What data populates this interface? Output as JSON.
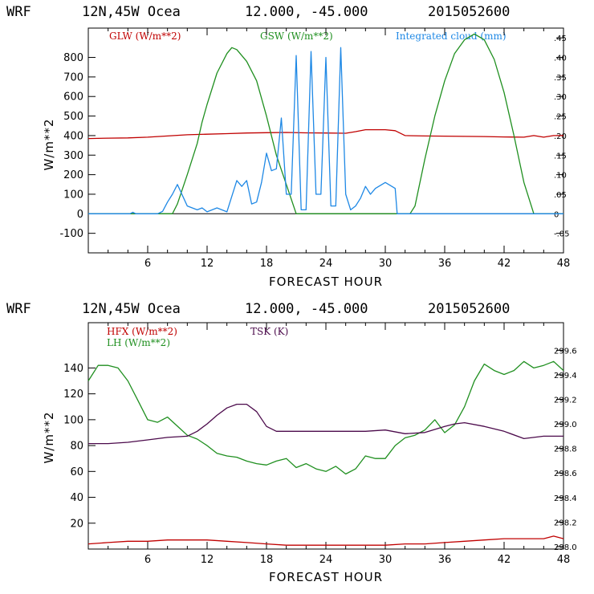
{
  "charts": [
    {
      "header": {
        "model": "WRF",
        "location": "12N,45W Ocea",
        "coords": "12.000, -45.000",
        "date": "2015052600"
      },
      "xlabel": "FORECAST HOUR",
      "ylabel": "W/m**2"
    },
    {
      "header": {
        "model": "WRF",
        "location": "12N,45W Ocea",
        "coords": "12.000, -45.000",
        "date": "2015052600"
      },
      "xlabel": "FORECAST HOUR",
      "ylabel": "W/m**2"
    }
  ],
  "chart_data": [
    {
      "type": "line",
      "title": "WRF 12N,45W Ocea 12.000, -45.000 2015052600",
      "xlabel": "FORECAST HOUR",
      "ylabel": "W/m**2",
      "xlim": [
        0,
        48
      ],
      "ylim": [
        -200,
        950
      ],
      "y2lim": [
        -0.1,
        0.475
      ],
      "x_ticks": [
        6,
        12,
        18,
        24,
        30,
        36,
        42,
        48
      ],
      "y_ticks": [
        -100,
        0,
        100,
        200,
        300,
        400,
        500,
        600,
        700,
        800
      ],
      "y2_ticks": [
        -0.05,
        0,
        0.05,
        0.1,
        0.15,
        0.2,
        0.25,
        0.3,
        0.35,
        0.4,
        0.45
      ],
      "y2_tick_labels": [
        "-.05",
        "0",
        ".05",
        ".10",
        ".15",
        ".20",
        ".25",
        ".30",
        ".35",
        ".40",
        ".45"
      ],
      "zero_line": true,
      "series": [
        {
          "name": "GLW (W/m**2)",
          "color": "#c00000",
          "axis": "left",
          "x": [
            0,
            2,
            4,
            6,
            8,
            10,
            12,
            14,
            16,
            18,
            20,
            22,
            24,
            26,
            27,
            28,
            30,
            31,
            32,
            34,
            36,
            38,
            40,
            42,
            44,
            45,
            46,
            47,
            48
          ],
          "y": [
            385,
            387,
            388,
            392,
            398,
            404,
            407,
            410,
            413,
            415,
            416,
            414,
            413,
            412,
            420,
            430,
            430,
            425,
            400,
            398,
            397,
            396,
            395,
            393,
            392,
            400,
            392,
            400,
            400
          ]
        },
        {
          "name": "GSW (W/m**2)",
          "color": "#1f8f1f",
          "axis": "left",
          "x": [
            0,
            8.5,
            9,
            10,
            11,
            11.5,
            12,
            13,
            14,
            14.5,
            15,
            16,
            17,
            18,
            19,
            20,
            21,
            22,
            32.5,
            33,
            34,
            35,
            36,
            37,
            38,
            39,
            40,
            41,
            42,
            43,
            44,
            45,
            48
          ],
          "y": [
            0,
            0,
            50,
            200,
            360,
            470,
            560,
            720,
            820,
            850,
            840,
            780,
            680,
            500,
            300,
            150,
            0,
            0,
            0,
            40,
            280,
            500,
            680,
            820,
            890,
            920,
            890,
            790,
            620,
            400,
            160,
            0,
            0
          ]
        },
        {
          "name": "Integrated cloud (mm)",
          "color": "#1e88e5",
          "axis": "right",
          "x": [
            0,
            4.2,
            4.5,
            4.8,
            7,
            7.5,
            8,
            8.5,
            9,
            10,
            11,
            11.5,
            12,
            13,
            14,
            15,
            15.5,
            16,
            16.5,
            17,
            17.5,
            18,
            18.5,
            19,
            19.5,
            20,
            20.5,
            21,
            21.5,
            22,
            22.5,
            23,
            23.5,
            24,
            24.5,
            25,
            25.5,
            26,
            26.5,
            27,
            27.5,
            28,
            28.5,
            29,
            30,
            31,
            31.2,
            48
          ],
          "y": [
            0,
            0,
            0.004,
            0,
            0,
            0.006,
            0.03,
            0.05,
            0.075,
            0.02,
            0.01,
            0.015,
            0.005,
            0.015,
            0.005,
            0.085,
            0.07,
            0.085,
            0.025,
            0.03,
            0.08,
            0.155,
            0.11,
            0.115,
            0.245,
            0.05,
            0.05,
            0.405,
            0.01,
            0.01,
            0.415,
            0.05,
            0.05,
            0.4,
            0.02,
            0.02,
            0.425,
            0.05,
            0.01,
            0.02,
            0.04,
            0.07,
            0.05,
            0.065,
            0.08,
            0.065,
            0,
            0
          ]
        }
      ]
    },
    {
      "type": "line",
      "title": "WRF 12N,45W Ocea 12.000, -45.000 2015052600",
      "xlabel": "FORECAST HOUR",
      "ylabel": "W/m**2",
      "xlim": [
        0,
        48
      ],
      "ylim": [
        0,
        175
      ],
      "y2lim": [
        297.98,
        299.825
      ],
      "x_ticks": [
        6,
        12,
        18,
        24,
        30,
        36,
        42,
        48
      ],
      "y_ticks": [
        20,
        40,
        60,
        80,
        100,
        120,
        140
      ],
      "y2_ticks": [
        298.0,
        298.2,
        298.4,
        298.6,
        298.8,
        299.0,
        299.2,
        299.4,
        299.6
      ],
      "y2_tick_labels": [
        "298.0",
        "298.2",
        "298.4",
        "298.6",
        "298.8",
        "299.0",
        "299.2",
        "299.4",
        "299.6"
      ],
      "series": [
        {
          "name": "HFX (W/m**2)",
          "color": "#c00000",
          "axis": "left",
          "x": [
            0,
            2,
            4,
            6,
            8,
            10,
            12,
            14,
            16,
            18,
            20,
            22,
            24,
            26,
            28,
            30,
            32,
            34,
            36,
            38,
            40,
            42,
            44,
            46,
            47,
            48
          ],
          "y": [
            4,
            5,
            6,
            6,
            7,
            7,
            7,
            6,
            5,
            4,
            3,
            3,
            3,
            3,
            3,
            3,
            4,
            4,
            5,
            6,
            7,
            8,
            8,
            8,
            10,
            8
          ]
        },
        {
          "name": "LH (W/m**2)",
          "color": "#1f8f1f",
          "axis": "left",
          "x": [
            0,
            1,
            2,
            3,
            4,
            5,
            6,
            7,
            8,
            9,
            10,
            11,
            12,
            13,
            14,
            15,
            16,
            17,
            18,
            19,
            20,
            21,
            22,
            23,
            24,
            25,
            26,
            27,
            28,
            29,
            30,
            31,
            32,
            33,
            34,
            35,
            36,
            37,
            38,
            39,
            40,
            41,
            42,
            43,
            44,
            45,
            46,
            47,
            48
          ],
          "y": [
            130,
            142,
            142,
            140,
            130,
            115,
            100,
            98,
            102,
            95,
            88,
            85,
            80,
            74,
            72,
            71,
            68,
            66,
            65,
            68,
            70,
            63,
            66,
            62,
            60,
            64,
            58,
            62,
            72,
            70,
            70,
            80,
            86,
            88,
            92,
            100,
            90,
            96,
            110,
            130,
            143,
            138,
            135,
            138,
            145,
            140,
            142,
            145,
            138
          ]
        },
        {
          "name": "TSK (K)",
          "color": "#4b0a4b",
          "axis": "right",
          "x": [
            0,
            2,
            4,
            6,
            8,
            10,
            11,
            12,
            13,
            14,
            15,
            16,
            17,
            18,
            19,
            20,
            22,
            24,
            26,
            28,
            30,
            32,
            34,
            36,
            37,
            38,
            40,
            42,
            44,
            46,
            48
          ],
          "y": [
            298.84,
            298.84,
            298.85,
            298.87,
            298.89,
            298.9,
            298.94,
            299.0,
            299.07,
            299.13,
            299.16,
            299.16,
            299.1,
            298.98,
            298.94,
            298.94,
            298.94,
            298.94,
            298.94,
            298.94,
            298.95,
            298.92,
            298.93,
            298.98,
            299.0,
            299.01,
            298.98,
            298.94,
            298.88,
            298.9,
            298.9
          ]
        }
      ]
    }
  ]
}
